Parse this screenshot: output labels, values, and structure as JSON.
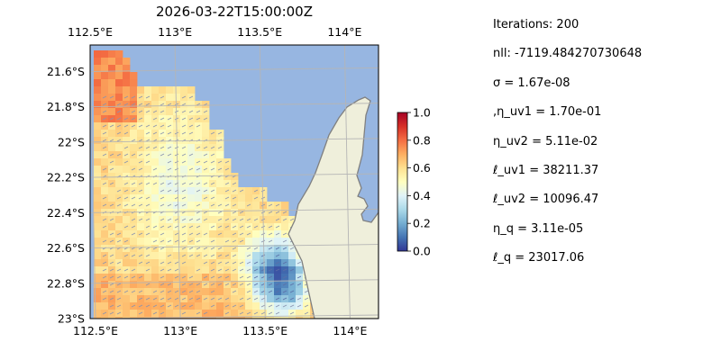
{
  "title": "2026-03-22T15:00:00Z",
  "map": {
    "lon_range": [
      112.5,
      114.2
    ],
    "lat_range": [
      -23.0,
      -21.45
    ],
    "x_ticks": [
      "112.5°E",
      "113°E",
      "113.5°E",
      "114°E"
    ],
    "y_ticks": [
      "21.6°S",
      "21.8°S",
      "22°S",
      "22.2°S",
      "22.4°S",
      "22.6°S",
      "22.8°S",
      "23°S"
    ],
    "ocean_color": "#97b6e1",
    "land_color": "#efefdb",
    "coast_color": "#808080",
    "grid": true
  },
  "colorbar": {
    "colormap": "RdYlBu_r",
    "range": [
      0.0,
      1.0
    ],
    "ticks": [
      "0.0",
      "0.2",
      "0.4",
      "0.6",
      "0.8",
      "1.0"
    ]
  },
  "params": [
    "Iterations: 200",
    "nll: -7119.484270730648",
    "σ = 1.67e-08",
    ",η_uv1 = 1.70e-01",
    "η_uv2 = 5.11e-02",
    "ℓ_uv1 = 38211.37",
    "ℓ_uv2 = 10096.47",
    "η_q = 3.11e-05",
    "ℓ_q = 23017.06"
  ]
}
